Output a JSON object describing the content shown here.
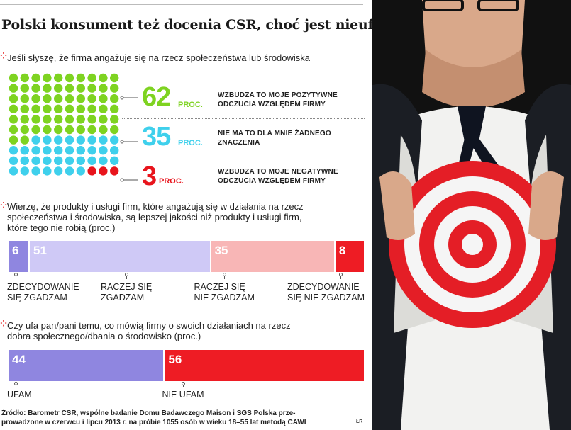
{
  "title": "Polski konsument też docenia CSR, choć jest nieufny",
  "q1": {
    "question": "Jeśli słyszę, że firma angażuje się na rzecz społeczeństwa lub środowiska",
    "unit": "PROC.",
    "rows": [
      {
        "value": "62",
        "desc": "WZBUDZA TO MOJE POZYTYWNE ODCZUCIA WZGLĘDEM FIRMY",
        "color": "#7ed321"
      },
      {
        "value": "35",
        "desc": "NIE MA TO DLA MNIE ŻADNEGO ZNACZENIA",
        "color": "#3fd0ec"
      },
      {
        "value": "3",
        "desc": "WZBUDZA TO MOJE NEGATYWNE ODCZUCIA WZGLĘDEM FIRMY",
        "color": "#e8141c"
      }
    ]
  },
  "q2": {
    "question_lines": [
      "Wierzę, że produkty i usługi firm, które angażują się w działania na rzecz",
      "społeczeństwa i środowiska, są lepszej jakości niż produkty i usługi firm,",
      "które tego nie robią (proc.)"
    ],
    "segments": [
      {
        "value": 6,
        "label": "6",
        "color": "#8f86e0",
        "cap1": "ZDECYDOWANIE",
        "cap2": "SIĘ ZGADZAM"
      },
      {
        "value": 51,
        "label": "51",
        "color": "#cfc9f6",
        "cap1": "RACZEJ SIĘ",
        "cap2": "ZGADZAM"
      },
      {
        "value": 35,
        "label": "35",
        "color": "#f8b6b6",
        "cap1": "RACZEJ SIĘ",
        "cap2": "NIE ZGADZAM"
      },
      {
        "value": 8,
        "label": "8",
        "color": "#ee1c24",
        "cap1": "ZDECYDOWANIE",
        "cap2": "SIĘ NIE ZGADZAM"
      }
    ]
  },
  "q3": {
    "question_lines": [
      "Czy ufa pan/pani temu, co mówią firmy o swoich działaniach na rzecz",
      "dobra społecznego/dbania o środowisko (proc.)"
    ],
    "segments": [
      {
        "value": 44,
        "label": "44",
        "color": "#8f86e0",
        "cap1": "UFAM"
      },
      {
        "value": 56,
        "label": "56",
        "color": "#ee1c24",
        "cap1": "NIE UFAM"
      }
    ]
  },
  "source_lines": [
    "Źródło: Barometr CSR, wspólne badanie Domu Badawczego Maison i SGS Polska prze-",
    "prowadzone w czerwcu i lipcu 2013 r. na próbie 1055 osób w wieku 18–55 lat metodą CAWI"
  ],
  "logo": "ŁR",
  "chart_data": [
    {
      "type": "waffle",
      "title": "Jeśli słyszę, że firma angażuje się na rzecz społeczeństwa lub środowiska",
      "categories": [
        "Wzbudza to moje pozytywne odczucia względem firmy",
        "Nie ma to dla mnie żadnego znaczenia",
        "Wzbudza to moje negatywne odczucia względem firmy"
      ],
      "values": [
        62,
        35,
        3
      ],
      "unit": "proc."
    },
    {
      "type": "bar",
      "stacked": true,
      "title": "Wierzę, że produkty i usługi firm... są lepszej jakości (proc.)",
      "categories": [
        "Zdecydowanie się zgadzam",
        "Raczej się zgadzam",
        "Raczej się nie zgadzam",
        "Zdecydowanie się nie zgadzam"
      ],
      "values": [
        6,
        51,
        35,
        8
      ]
    },
    {
      "type": "bar",
      "stacked": true,
      "title": "Czy ufa pan/pani temu, co mówią firmy o swoich działaniach (proc.)",
      "categories": [
        "Ufam",
        "Nie ufam"
      ],
      "values": [
        44,
        56
      ]
    }
  ]
}
